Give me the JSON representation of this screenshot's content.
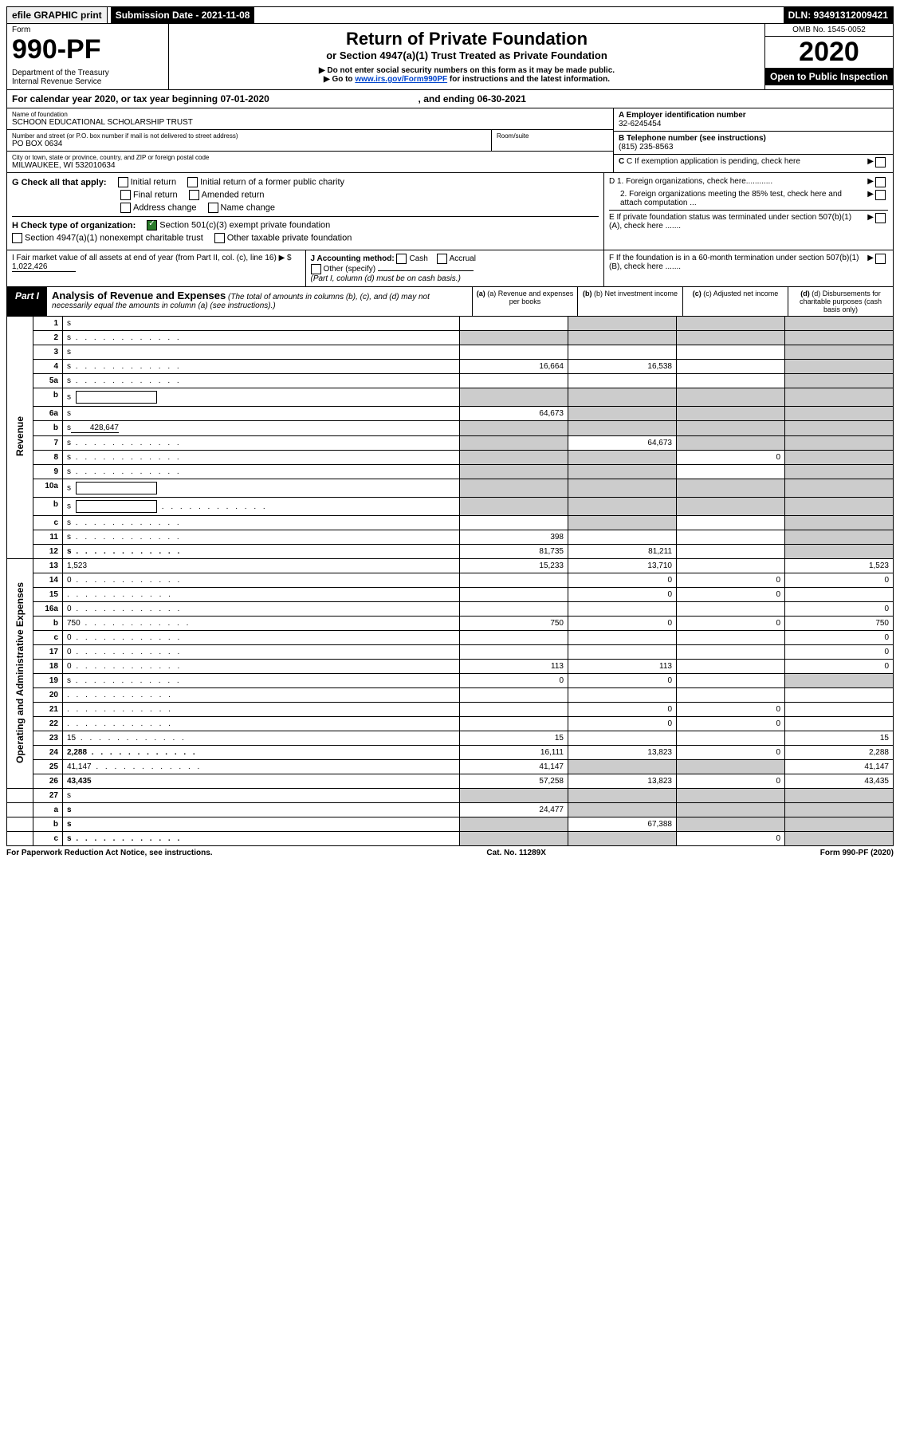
{
  "top": {
    "efile": "efile GRAPHIC print",
    "submission": "Submission Date - 2021-11-08",
    "dln": "DLN: 93491312009421"
  },
  "header": {
    "form_label": "Form",
    "form_no": "990-PF",
    "dept": "Department of the Treasury\nInternal Revenue Service",
    "title": "Return of Private Foundation",
    "subtitle": "or Section 4947(a)(1) Trust Treated as Private Foundation",
    "instr1": "▶ Do not enter social security numbers on this form as it may be made public.",
    "instr2_pre": "▶ Go to ",
    "instr2_link": "www.irs.gov/Form990PF",
    "instr2_post": " for instructions and the latest information.",
    "omb": "OMB No. 1545-0052",
    "year": "2020",
    "open": "Open to Public Inspection"
  },
  "cal_year": {
    "pre": "For calendar year 2020, or tax year beginning ",
    "begin": "07-01-2020",
    "mid": ", and ending ",
    "end": "06-30-2021"
  },
  "info": {
    "name_label": "Name of foundation",
    "name": "SCHOON EDUCATIONAL SCHOLARSHIP TRUST",
    "addr_label": "Number and street (or P.O. box number if mail is not delivered to street address)",
    "addr": "PO BOX 0634",
    "room_label": "Room/suite",
    "city_label": "City or town, state or province, country, and ZIP or foreign postal code",
    "city": "MILWAUKEE, WI  532010634",
    "ein_label": "A Employer identification number",
    "ein": "32-6245454",
    "phone_label": "B Telephone number (see instructions)",
    "phone": "(815) 235-8563",
    "c_label": "C If exemption application is pending, check here",
    "d1": "D 1. Foreign organizations, check here............",
    "d2": "2. Foreign organizations meeting the 85% test, check here and attach computation ...",
    "e": "E  If private foundation status was terminated under section 507(b)(1)(A), check here .......",
    "f": "F  If the foundation is in a 60-month termination under section 507(b)(1)(B), check here .......",
    "g_label": "G Check all that apply:",
    "g_opts": [
      "Initial return",
      "Initial return of a former public charity",
      "Final return",
      "Amended return",
      "Address change",
      "Name change"
    ],
    "h_label": "H Check type of organization:",
    "h_opts": [
      "Section 501(c)(3) exempt private foundation",
      "Section 4947(a)(1) nonexempt charitable trust",
      "Other taxable private foundation"
    ],
    "i_label": "I Fair market value of all assets at end of year (from Part II, col. (c), line 16) ▶ $",
    "i_val": "1,022,426",
    "j_label": "J Accounting method:",
    "j_opts": [
      "Cash",
      "Accrual"
    ],
    "j_other": "Other (specify)",
    "j_note": "(Part I, column (d) must be on cash basis.)"
  },
  "part1": {
    "label": "Part I",
    "title": "Analysis of Revenue and Expenses",
    "title_note": "(The total of amounts in columns (b), (c), and (d) may not necessarily equal the amounts in column (a) (see instructions).)",
    "cols": {
      "a": "(a) Revenue and expenses per books",
      "b": "(b) Net investment income",
      "c": "(c) Adjusted net income",
      "d": "(d) Disbursements for charitable purposes (cash basis only)"
    }
  },
  "sections": {
    "revenue": "Revenue",
    "admin": "Operating and Administrative Expenses"
  },
  "rows": [
    {
      "n": "1",
      "d": "s",
      "a": "",
      "b": "s",
      "c": "s"
    },
    {
      "n": "2",
      "d": "s",
      "dots": true,
      "a": "s",
      "b": "s",
      "c": "s"
    },
    {
      "n": "3",
      "d": "s",
      "a": "",
      "b": "",
      "c": ""
    },
    {
      "n": "4",
      "d": "s",
      "dots": true,
      "a": "16,664",
      "b": "16,538",
      "c": ""
    },
    {
      "n": "5a",
      "d": "s",
      "dots": true,
      "a": "",
      "b": "",
      "c": ""
    },
    {
      "n": "b",
      "d": "s",
      "box": true,
      "a": "s",
      "b": "s",
      "c": "s"
    },
    {
      "n": "6a",
      "d": "s",
      "a": "64,673",
      "b": "s",
      "c": "s"
    },
    {
      "n": "b",
      "d": "s",
      "box_val": "428,647",
      "a": "s",
      "b": "s",
      "c": "s"
    },
    {
      "n": "7",
      "d": "s",
      "dots": true,
      "a": "s",
      "b": "64,673",
      "c": "s"
    },
    {
      "n": "8",
      "d": "s",
      "dots": true,
      "a": "s",
      "b": "s",
      "c": "0"
    },
    {
      "n": "9",
      "d": "s",
      "dots": true,
      "a": "s",
      "b": "s",
      "c": ""
    },
    {
      "n": "10a",
      "d": "s",
      "box": true,
      "a": "s",
      "b": "s",
      "c": "s"
    },
    {
      "n": "b",
      "d": "s",
      "dots": true,
      "box": true,
      "a": "s",
      "b": "s",
      "c": "s"
    },
    {
      "n": "c",
      "d": "s",
      "dots": true,
      "a": "",
      "b": "s",
      "c": ""
    },
    {
      "n": "11",
      "d": "s",
      "dots": true,
      "a": "398",
      "b": "",
      "c": ""
    },
    {
      "n": "12",
      "d": "s",
      "dots": true,
      "bold": true,
      "a": "81,735",
      "b": "81,211",
      "c": ""
    }
  ],
  "exp_rows": [
    {
      "n": "13",
      "d": "1,523",
      "a": "15,233",
      "b": "13,710",
      "c": ""
    },
    {
      "n": "14",
      "d": "0",
      "dots": true,
      "a": "",
      "b": "0",
      "c": "0"
    },
    {
      "n": "15",
      "d": "",
      "dots": true,
      "a": "",
      "b": "0",
      "c": "0"
    },
    {
      "n": "16a",
      "d": "0",
      "dots": true,
      "a": "",
      "b": "",
      "c": ""
    },
    {
      "n": "b",
      "d": "750",
      "dots": true,
      "a": "750",
      "b": "0",
      "c": "0"
    },
    {
      "n": "c",
      "d": "0",
      "dots": true,
      "a": "",
      "b": "",
      "c": ""
    },
    {
      "n": "17",
      "d": "0",
      "dots": true,
      "a": "",
      "b": "",
      "c": ""
    },
    {
      "n": "18",
      "d": "0",
      "dots": true,
      "a": "113",
      "b": "113",
      "c": ""
    },
    {
      "n": "19",
      "d": "s",
      "dots": true,
      "a": "0",
      "b": "0",
      "c": ""
    },
    {
      "n": "20",
      "d": "",
      "dots": true,
      "a": "",
      "b": "",
      "c": ""
    },
    {
      "n": "21",
      "d": "",
      "dots": true,
      "a": "",
      "b": "0",
      "c": "0"
    },
    {
      "n": "22",
      "d": "",
      "dots": true,
      "a": "",
      "b": "0",
      "c": "0"
    },
    {
      "n": "23",
      "d": "15",
      "dots": true,
      "a": "15",
      "b": "",
      "c": ""
    },
    {
      "n": "24",
      "d": "2,288",
      "dots": true,
      "bold": true,
      "a": "16,111",
      "b": "13,823",
      "c": "0"
    },
    {
      "n": "25",
      "d": "41,147",
      "dots": true,
      "a": "41,147",
      "b": "s",
      "c": "s"
    },
    {
      "n": "26",
      "d": "43,435",
      "bold": true,
      "a": "57,258",
      "b": "13,823",
      "c": "0"
    }
  ],
  "bottom_rows": [
    {
      "n": "27",
      "d": "s",
      "a": "s",
      "b": "s",
      "c": "s"
    },
    {
      "n": "a",
      "d": "s",
      "bold": true,
      "a": "24,477",
      "b": "s",
      "c": "s"
    },
    {
      "n": "b",
      "d": "s",
      "bold": true,
      "a": "s",
      "b": "67,388",
      "c": "s"
    },
    {
      "n": "c",
      "d": "s",
      "bold": true,
      "dots": true,
      "a": "s",
      "b": "s",
      "c": "0"
    }
  ],
  "footer": {
    "left": "For Paperwork Reduction Act Notice, see instructions.",
    "mid": "Cat. No. 11289X",
    "right": "Form 990-PF (2020)"
  },
  "style": {
    "shade": "#cccccc",
    "checked_color": "#2a7a2a",
    "link": "#0044cc"
  }
}
